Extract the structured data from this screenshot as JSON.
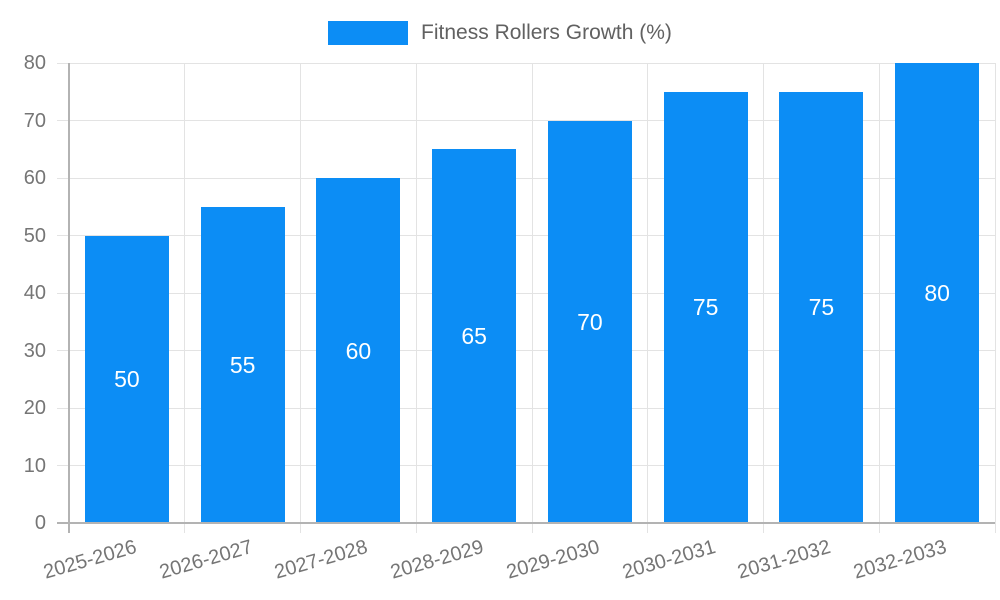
{
  "chart_data": {
    "type": "bar",
    "title": "Fitness Rollers Growth (%)",
    "legend": {
      "position": "top",
      "label": "Fitness Rollers Growth (%)"
    },
    "categories": [
      "2025-2026",
      "2026-2027",
      "2027-2028",
      "2028-2029",
      "2029-2030",
      "2030-2031",
      "2031-2032",
      "2032-2033"
    ],
    "values": [
      50,
      55,
      60,
      65,
      70,
      75,
      75,
      80
    ],
    "series": [
      {
        "name": "Fitness Rollers Growth (%)",
        "values": [
          50,
          55,
          60,
          65,
          70,
          75,
          75,
          80
        ]
      }
    ],
    "xlabel": "",
    "ylabel": "",
    "ylim": [
      0,
      80
    ],
    "ytick_step": 10,
    "yticks": [
      0,
      10,
      20,
      30,
      40,
      50,
      60,
      70,
      80
    ],
    "grid": true,
    "bar_value_labels_inside": true,
    "x_label_rotation_deg": -16,
    "colors": {
      "bar": "#0C8DF5",
      "bar_value_label": "#ffffff",
      "gridline": "#e3e3e3",
      "axis_line": "#b3b3b3",
      "tick_label_text": "#757575",
      "legend_text": "#616161",
      "background": "#ffffff"
    }
  }
}
